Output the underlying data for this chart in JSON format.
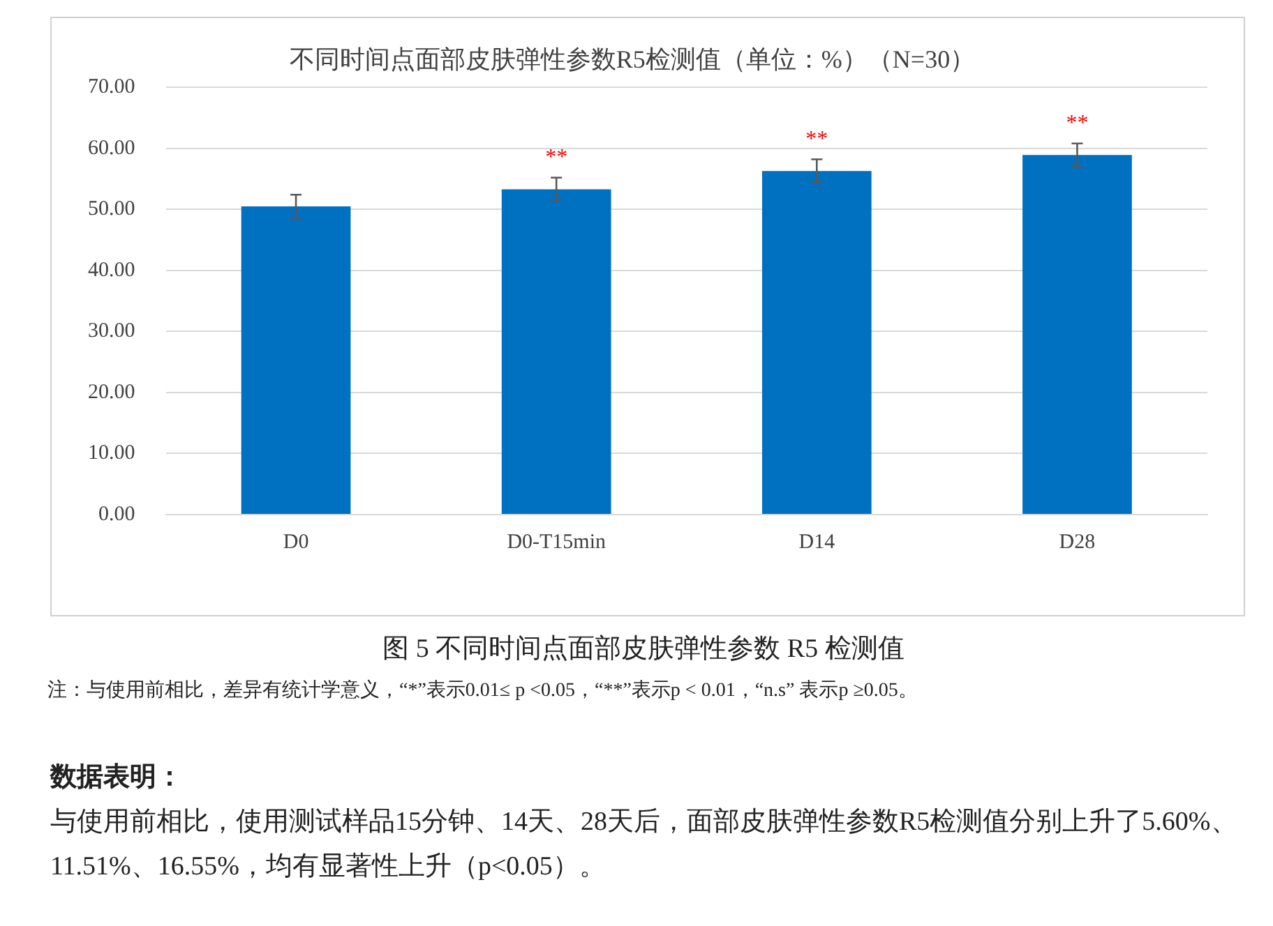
{
  "chart_data": {
    "type": "bar",
    "title": "不同时间点面部皮肤弹性参数R5检测值（单位：%）（N=30）",
    "categories": [
      "D0",
      "D0-T15min",
      "D14",
      "D28"
    ],
    "values": [
      50.5,
      53.3,
      56.3,
      58.9
    ],
    "errors": [
      1.9,
      1.9,
      1.9,
      1.9
    ],
    "color": "#0070c0",
    "ylim": [
      0,
      70
    ],
    "yticks": [
      {
        "value": 0,
        "label": "0.00"
      },
      {
        "value": 10,
        "label": "10.00"
      },
      {
        "value": 20,
        "label": "20.00"
      },
      {
        "value": 30,
        "label": "30.00"
      },
      {
        "value": 40,
        "label": "40.00"
      },
      {
        "value": 50,
        "label": "50.00"
      },
      {
        "value": 60,
        "label": "60.00"
      },
      {
        "value": 70,
        "label": "70.00"
      }
    ],
    "grid": "y",
    "legend": false,
    "annotations": [
      "**",
      "**",
      "**",
      "图 5 不同时间点面部皮肤弹性参数 R5 检测值",
      "注：与使用前相比，差异有统计学意义，“*”表示0.01≤ p <0.05，“**”表示p < 0.01，“n.s” 表示p ≥0.05。",
      "数据表明：",
      "与使用前相比，使用测试样品15分钟、14天、28天后，面部皮肤弹性参数R5检测值分别上升了5.60%、11.51%、16.55%，均有显著性上升（p<0.05）。"
    ]
  }
}
